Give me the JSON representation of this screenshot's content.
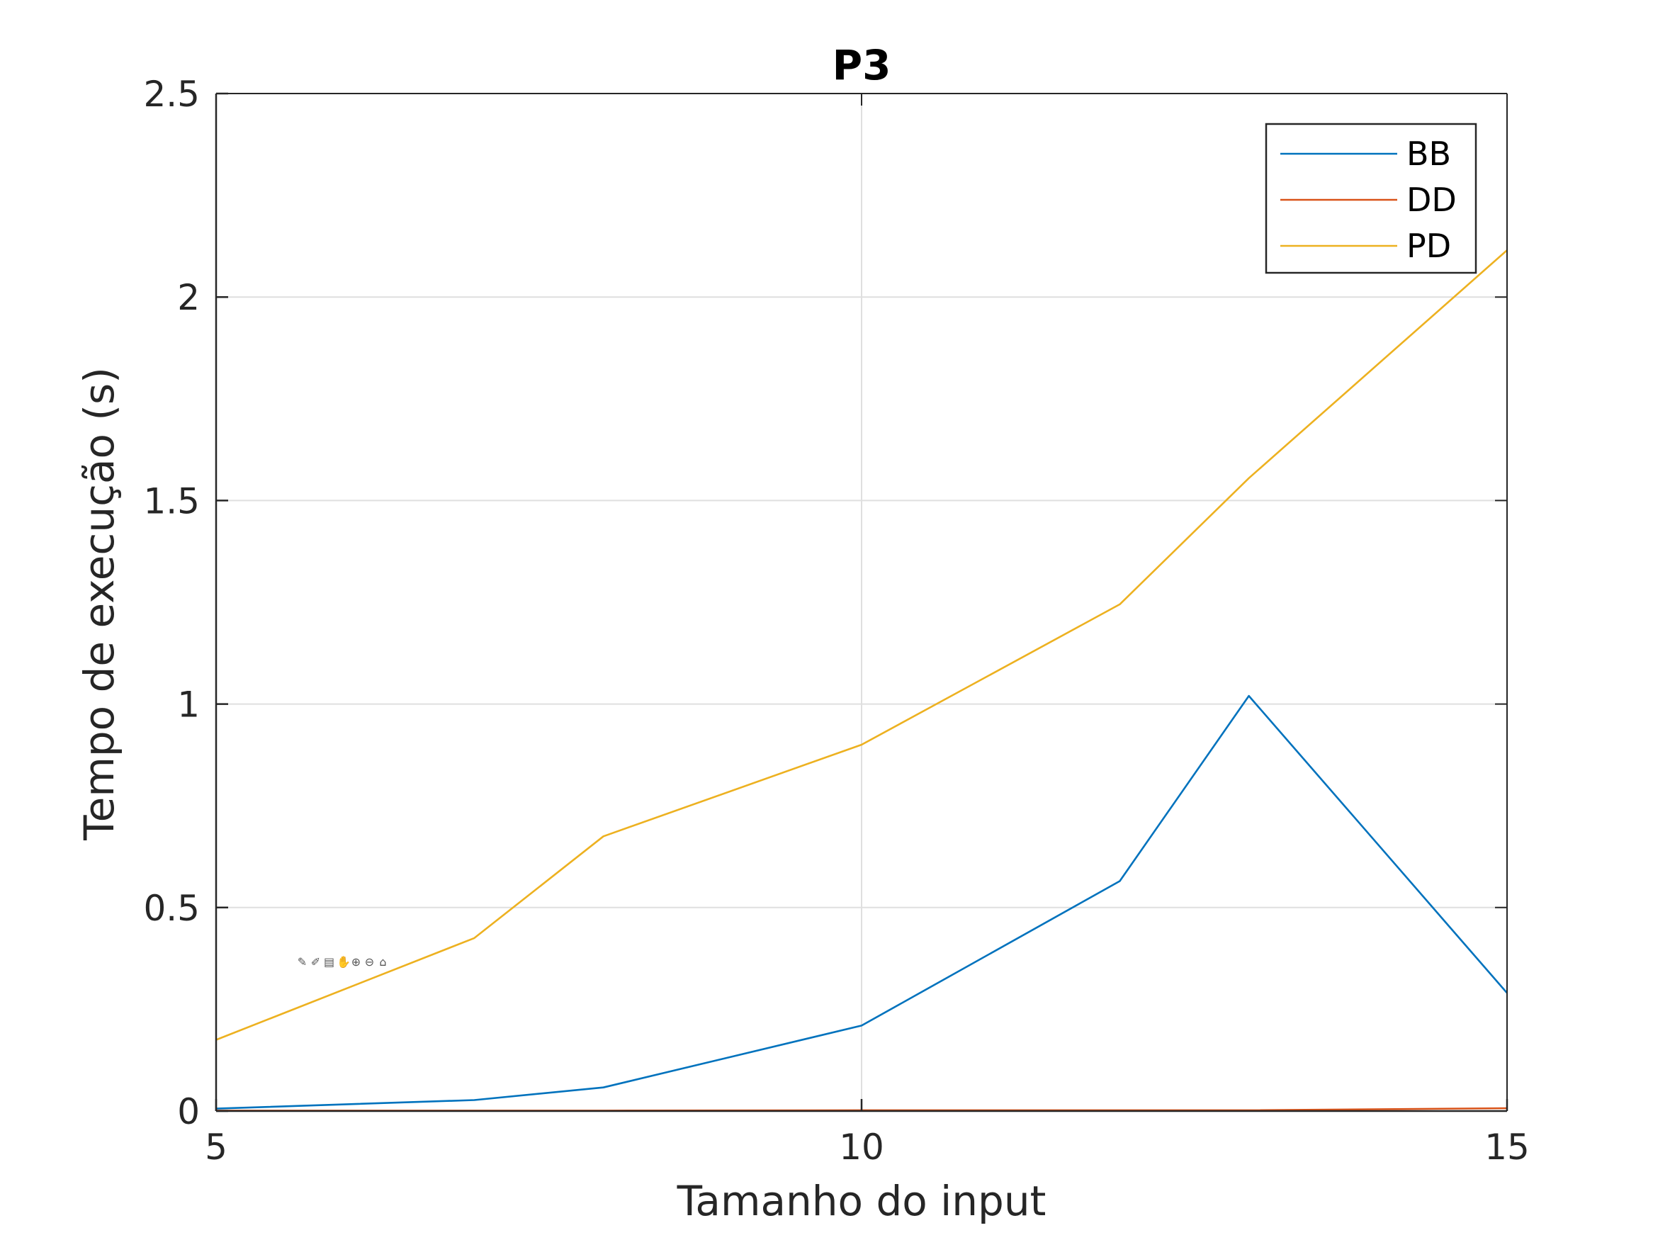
{
  "chart_data": {
    "type": "line",
    "title": "P3",
    "xlabel": "Tamanho do input",
    "ylabel": "Tempo de execução (s)",
    "xlim": [
      5,
      15
    ],
    "ylim": [
      0,
      2.5
    ],
    "xticks": [
      5,
      10,
      15
    ],
    "xtick_labels": [
      "5",
      "10",
      "15"
    ],
    "yticks": [
      0,
      0.5,
      1,
      1.5,
      2,
      2.5
    ],
    "ytick_labels": [
      "0",
      "0.5",
      "1",
      "1.5",
      "2",
      "2.5"
    ],
    "grid": true,
    "legend_position": "top-right",
    "x": [
      5,
      7,
      8,
      10,
      12,
      13,
      15
    ],
    "series": [
      {
        "name": "BB",
        "color": "#0072BD",
        "values": [
          0.006,
          0.027,
          0.058,
          0.21,
          0.565,
          1.02,
          0.29
        ]
      },
      {
        "name": "DD",
        "color": "#D95319",
        "values": [
          0.001,
          0.001,
          0.001,
          0.002,
          0.002,
          0.002,
          0.007
        ]
      },
      {
        "name": "PD",
        "color": "#EDB120",
        "values": [
          0.175,
          0.425,
          0.675,
          0.9,
          1.245,
          1.555,
          2.115
        ]
      }
    ]
  },
  "toolbar": {
    "icons": [
      "brush-icon",
      "paint-icon",
      "datatip-icon",
      "pan-icon",
      "zoom-in-icon",
      "zoom-out-icon",
      "home-icon"
    ]
  }
}
